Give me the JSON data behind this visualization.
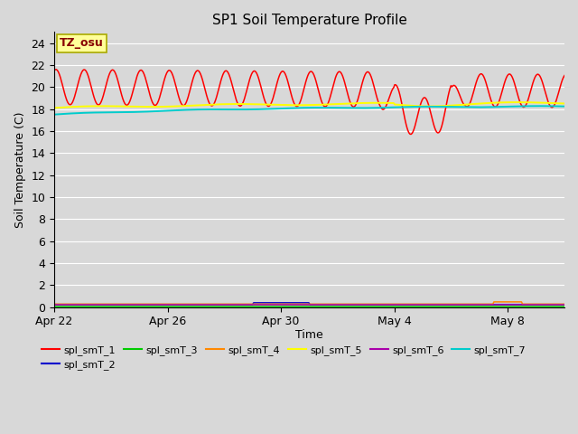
{
  "title": "SP1 Soil Temperature Profile",
  "xlabel": "Time",
  "ylabel": "Soil Temperature (C)",
  "ylim": [
    0,
    25
  ],
  "yticks": [
    0,
    2,
    4,
    6,
    8,
    10,
    12,
    14,
    16,
    18,
    20,
    22,
    24
  ],
  "background_color": "#d8d8d8",
  "plot_bg_color": "#d8d8d8",
  "annotation_text": "TZ_osu",
  "annotation_bg": "#ffff99",
  "annotation_border": "#aaaa00",
  "annotation_text_color": "#880000",
  "series_colors": {
    "spl_smT_1": "#ff0000",
    "spl_smT_2": "#0000cc",
    "spl_smT_3": "#00cc00",
    "spl_smT_4": "#ff8800",
    "spl_smT_5": "#ffff00",
    "spl_smT_6": "#aa00aa",
    "spl_smT_7": "#00cccc"
  },
  "x_tick_labels": [
    "Apr 22",
    "Apr 26",
    "Apr 30",
    "May 4",
    "May 8"
  ],
  "x_tick_positions": [
    0,
    4,
    8,
    12,
    16
  ],
  "font_size": 9,
  "title_font_size": 11,
  "legend_order": [
    "spl_smT_1",
    "spl_smT_2",
    "spl_smT_3",
    "spl_smT_4",
    "spl_smT_5",
    "spl_smT_6",
    "spl_smT_7"
  ]
}
